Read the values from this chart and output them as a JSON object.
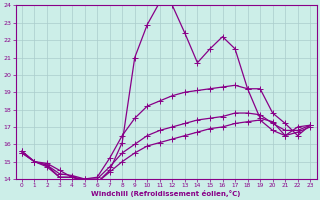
{
  "background_color": "#cceee8",
  "grid_color": "#aacccc",
  "line_color": "#880088",
  "xlabel": "Windchill (Refroidissement éolien,°C)",
  "xlim": [
    -0.5,
    23.5
  ],
  "ylim": [
    14,
    24
  ],
  "yticks": [
    14,
    15,
    16,
    17,
    18,
    19,
    20,
    21,
    22,
    23,
    24
  ],
  "xticks": [
    0,
    1,
    2,
    3,
    4,
    5,
    6,
    7,
    8,
    9,
    10,
    11,
    12,
    13,
    14,
    15,
    16,
    17,
    18,
    19,
    20,
    21,
    22,
    23
  ],
  "series1_x": [
    0,
    1,
    2,
    3,
    4,
    5,
    6,
    7,
    8,
    9,
    10,
    11,
    12,
    13,
    14,
    15,
    16,
    17,
    18,
    19,
    20,
    21,
    22,
    23
  ],
  "series1_y": [
    15.6,
    15.0,
    14.8,
    14.1,
    14.1,
    13.9,
    13.8,
    14.5,
    16.1,
    21.0,
    22.9,
    24.2,
    24.0,
    22.4,
    20.7,
    21.5,
    22.2,
    21.5,
    19.2,
    17.5,
    17.3,
    16.5,
    17.0,
    17.1
  ],
  "series2_x": [
    0,
    1,
    2,
    3,
    4,
    5,
    6,
    7,
    8,
    9,
    10,
    11,
    12,
    13,
    14,
    15,
    16,
    17,
    18,
    19,
    20,
    21,
    22,
    23
  ],
  "series2_y": [
    15.6,
    15.0,
    14.9,
    14.5,
    14.1,
    14.0,
    14.1,
    15.2,
    16.5,
    17.5,
    18.2,
    18.5,
    18.8,
    19.0,
    19.1,
    19.2,
    19.3,
    19.4,
    19.2,
    19.2,
    17.8,
    17.2,
    16.5,
    17.1
  ],
  "series3_x": [
    0,
    1,
    2,
    3,
    4,
    5,
    6,
    7,
    8,
    9,
    10,
    11,
    12,
    13,
    14,
    15,
    16,
    17,
    18,
    19,
    20,
    21,
    22,
    23
  ],
  "series3_y": [
    15.5,
    15.0,
    14.8,
    14.3,
    14.2,
    14.0,
    14.0,
    14.7,
    15.5,
    16.0,
    16.5,
    16.8,
    17.0,
    17.2,
    17.4,
    17.5,
    17.6,
    17.8,
    17.8,
    17.7,
    17.2,
    16.8,
    16.8,
    17.1
  ],
  "series4_x": [
    0,
    1,
    2,
    3,
    4,
    5,
    6,
    7,
    8,
    9,
    10,
    11,
    12,
    13,
    14,
    15,
    16,
    17,
    18,
    19,
    20,
    21,
    22,
    23
  ],
  "series4_y": [
    15.5,
    15.0,
    14.7,
    14.1,
    14.1,
    13.9,
    13.8,
    14.4,
    15.0,
    15.5,
    15.9,
    16.1,
    16.3,
    16.5,
    16.7,
    16.9,
    17.0,
    17.2,
    17.3,
    17.4,
    16.8,
    16.5,
    16.7,
    17.0
  ]
}
